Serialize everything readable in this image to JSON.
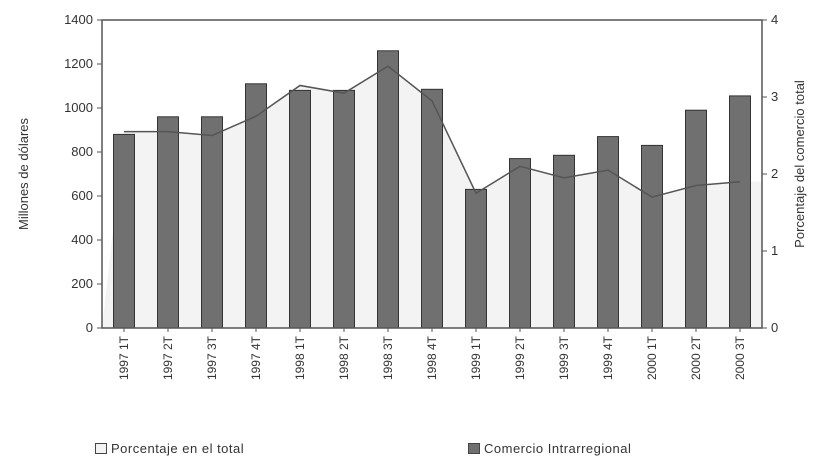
{
  "chart_data": {
    "type": "bar",
    "categories": [
      "1997 1T",
      "1997 2T",
      "1997 3T",
      "1997 4T",
      "1998 1T",
      "1998 2T",
      "1998 3T",
      "1998 4T",
      "1999 1T",
      "1999 2T",
      "1999 3T",
      "1999 4T",
      "2000 1T",
      "2000 2T",
      "2000 3T"
    ],
    "series": [
      {
        "name": "Comercio Intrarregional",
        "axis": "left",
        "kind": "bar",
        "values": [
          880,
          960,
          960,
          1110,
          1080,
          1080,
          1260,
          1085,
          630,
          770,
          785,
          870,
          830,
          990,
          1055
        ]
      },
      {
        "name": "Porcentaje en el total",
        "axis": "right",
        "kind": "area-line",
        "values": [
          2.55,
          2.55,
          2.5,
          2.75,
          3.15,
          3.05,
          3.4,
          2.95,
          1.75,
          2.1,
          1.95,
          2.05,
          1.7,
          1.85,
          1.9
        ]
      }
    ],
    "ylabel": "Millones de dólares",
    "y2label": "Porcentaje del comercio total",
    "ylim": [
      0,
      1400
    ],
    "yticks": [
      0,
      200,
      400,
      600,
      800,
      1000,
      1200,
      1400
    ],
    "y2lim": [
      0,
      4
    ],
    "y2ticks": [
      0,
      1,
      2,
      3,
      4
    ],
    "colors": {
      "bar": "#707070",
      "area": "#f3f3f3",
      "line": "#555555",
      "frame": "#555555"
    },
    "legend": {
      "position": "bottom",
      "items": [
        {
          "label": "Porcentaje en el total",
          "swatch": "#f3f3f3"
        },
        {
          "label": "Comercio Intrarregional",
          "swatch": "#707070"
        }
      ]
    }
  }
}
